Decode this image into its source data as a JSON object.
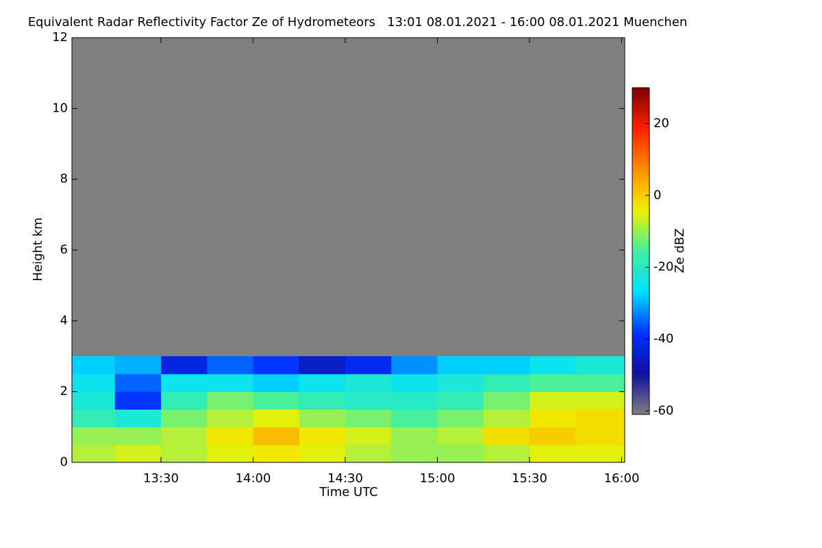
{
  "chart_data": {
    "type": "heatmap",
    "title": "Equivalent Radar Reflectivity Factor Ze of Hydrometeors   13:01 08.01.2021 - 16:00 08.01.2021 Muenchen",
    "x_label": "Time UTC",
    "y_label": "Height km",
    "colorbar_label": "Ze dBZ",
    "xlim": [
      13.0167,
      16.0167
    ],
    "xticks": [
      {
        "value": 13.5,
        "label": "13:30"
      },
      {
        "value": 14,
        "label": "14:00"
      },
      {
        "value": 14.5,
        "label": "14:30"
      },
      {
        "value": 15,
        "label": "15:00"
      },
      {
        "value": 15.5,
        "label": "15:30"
      },
      {
        "value": 16,
        "label": "16:00"
      }
    ],
    "ylim": [
      0,
      12
    ],
    "yticks": [
      0,
      2,
      4,
      6,
      8,
      10,
      12
    ],
    "clim": [
      -61,
      30
    ],
    "cticks": [
      -60,
      -40,
      -20,
      0,
      20
    ],
    "background_color": "#808080",
    "colormap": [
      "#808080",
      "#1010a0",
      "#0030ff",
      "#00e0ff",
      "#40f0a0",
      "#f0f000",
      "#ff9000",
      "#ff2000",
      "#800000"
    ],
    "x_edges": [
      13.0167,
      13.25,
      13.5,
      13.75,
      14,
      14.25,
      14.5,
      14.75,
      15,
      15.25,
      15.5,
      15.75,
      16.0167
    ],
    "y_edges": [
      0,
      0.5,
      1,
      1.5,
      2,
      2.5,
      3
    ],
    "values": [
      [
        -8,
        -6,
        -8,
        -5,
        -3,
        -5,
        -8,
        -10,
        -10,
        -8,
        -5,
        -5
      ],
      [
        -10,
        -10,
        -8,
        -3,
        2,
        -3,
        -6,
        -10,
        -8,
        -2,
        0,
        -2
      ],
      [
        -18,
        -22,
        -12,
        -8,
        -5,
        -10,
        -12,
        -15,
        -12,
        -8,
        -3,
        -2
      ],
      [
        -22,
        -38,
        -18,
        -12,
        -15,
        -18,
        -20,
        -20,
        -18,
        -12,
        -6,
        -6
      ],
      [
        -25,
        -35,
        -25,
        -25,
        -28,
        -25,
        -22,
        -25,
        -22,
        -18,
        -15,
        -15
      ],
      [
        -28,
        -30,
        -42,
        -35,
        -38,
        -45,
        -40,
        -32,
        -28,
        -28,
        -25,
        -22
      ]
    ]
  }
}
